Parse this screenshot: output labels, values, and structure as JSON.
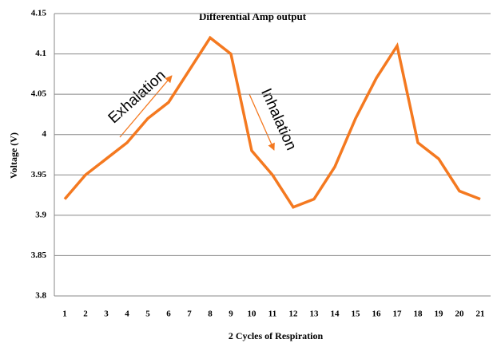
{
  "chart_data": {
    "type": "line",
    "title": "Differential Amp output",
    "x_label": "2 Cycles of Respiration",
    "y_label": "Voltage (V)",
    "categories": [
      "1",
      "2",
      "3",
      "4",
      "5",
      "6",
      "7",
      "8",
      "9",
      "10",
      "11",
      "12",
      "13",
      "14",
      "15",
      "16",
      "17",
      "18",
      "19",
      "20",
      "21"
    ],
    "values": [
      3.92,
      3.95,
      3.97,
      3.99,
      4.02,
      4.04,
      4.08,
      4.12,
      4.1,
      3.98,
      3.95,
      3.91,
      3.92,
      3.96,
      4.02,
      4.07,
      4.11,
      3.99,
      3.97,
      3.93,
      3.92
    ],
    "color": "#f47920",
    "ylim": [
      3.8,
      4.15
    ],
    "yticks": [
      3.8,
      3.85,
      3.9,
      3.95,
      4,
      4.05,
      4.1,
      4.15
    ],
    "grid": true,
    "annotations": [
      {
        "text": "Exhalation"
      },
      {
        "text": "Inhalation"
      }
    ]
  }
}
